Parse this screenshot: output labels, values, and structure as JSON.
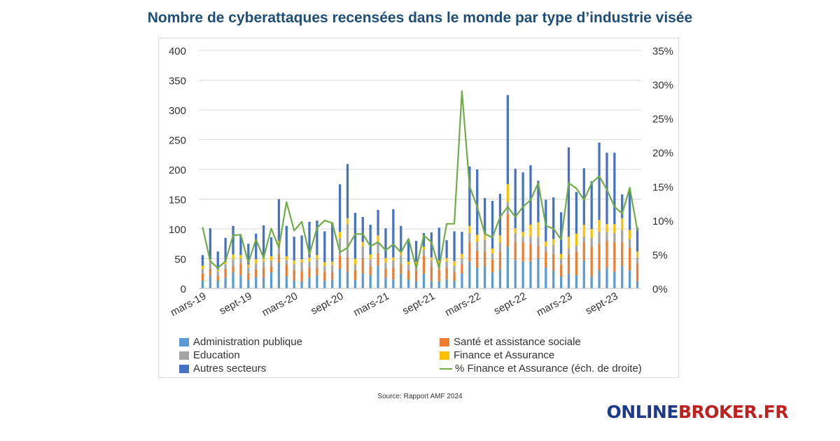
{
  "title": "Nombre de cyberattaques recensées dans le monde par type d’industrie visée",
  "source": "Source: Rapport AMF 2024",
  "brand": {
    "part1": "ONLINE",
    "part2": "BROKER.FR"
  },
  "colors": {
    "admin": "#5b9bd5",
    "sante": "#ed7d31",
    "education": "#a5a5a5",
    "finance": "#ffc000",
    "autres": "#4472c4",
    "pct": "#70ad47",
    "axis_text": "#333333",
    "title": "#1f4e79"
  },
  "chart_data": {
    "type": "bar",
    "stacked": true,
    "title": "Nombre de cyberattaques recensées dans le monde par type d’industrie visée",
    "ylim": [
      0,
      400
    ],
    "y_ticks": [
      "0",
      "50",
      "100",
      "150",
      "200",
      "250",
      "300",
      "350",
      "400"
    ],
    "y2lim": [
      0,
      35
    ],
    "y2_ticks": [
      "0%",
      "5%",
      "10%",
      "15%",
      "20%",
      "25%",
      "30%",
      "35%"
    ],
    "x_tick_labels": [
      "mars-19",
      "sept-19",
      "mars-20",
      "sept-20",
      "mars-21",
      "sept-21",
      "mars-22",
      "sept-22",
      "mars-23",
      "sept-23"
    ],
    "x_tick_every": 6,
    "series": [
      {
        "name": "Administration publique",
        "key": "admin",
        "values": [
          13,
          21,
          13,
          18,
          27,
          22,
          14,
          19,
          18,
          27,
          43,
          20,
          13,
          12,
          18,
          22,
          13,
          15,
          33,
          28,
          14,
          25,
          22,
          38,
          18,
          15,
          25,
          15,
          12,
          25,
          12,
          12,
          15,
          13,
          25,
          45,
          35,
          37,
          27,
          32,
          70,
          48,
          45,
          45,
          50,
          35,
          30,
          20,
          25,
          22,
          47,
          20,
          30,
          35,
          28,
          38,
          30,
          12
        ],
        "neutral": [
          0,
          0,
          0,
          0,
          0,
          0,
          0,
          0,
          0,
          0,
          0,
          0,
          0,
          0,
          0,
          0,
          0,
          0,
          0,
          0,
          0,
          0,
          0,
          0,
          0,
          0,
          0,
          0,
          0,
          0,
          0,
          0,
          0,
          0,
          0,
          0,
          0,
          0,
          0,
          0,
          0,
          0,
          0,
          0,
          0,
          0,
          0,
          0,
          0,
          0,
          0,
          0,
          0,
          0,
          0,
          0,
          0,
          0
        ]
      },
      {
        "name": "Santé et assistance sociale",
        "key": "sante",
        "values": [
          12,
          12,
          8,
          15,
          10,
          20,
          12,
          13,
          17,
          10,
          15,
          20,
          18,
          17,
          17,
          12,
          15,
          12,
          22,
          25,
          16,
          25,
          15,
          21,
          15,
          20,
          16,
          15,
          18,
          30,
          25,
          20,
          20,
          15,
          15,
          33,
          28,
          25,
          22,
          30,
          55,
          30,
          32,
          30,
          22,
          26,
          28,
          20,
          32,
          40,
          30,
          50,
          45,
          45,
          50,
          40,
          38,
          30
        ]
      },
      {
        "name": "Education",
        "key": "education",
        "values": [
          8,
          12,
          8,
          8,
          12,
          8,
          10,
          10,
          10,
          10,
          15,
          8,
          10,
          15,
          10,
          15,
          10,
          12,
          30,
          55,
          10,
          20,
          12,
          20,
          10,
          12,
          15,
          10,
          10,
          10,
          10,
          10,
          10,
          10,
          10,
          15,
          15,
          20,
          10,
          15,
          20,
          15,
          10,
          12,
          15,
          10,
          15,
          10,
          10,
          10,
          10,
          15,
          20,
          15,
          15,
          20,
          15,
          10
        ]
      },
      {
        "name": "Finance et Assurance",
        "key": "finance",
        "values": [
          5,
          4,
          3,
          4,
          8,
          6,
          4,
          7,
          6,
          7,
          7,
          6,
          6,
          5,
          7,
          7,
          6,
          6,
          10,
          10,
          10,
          8,
          8,
          10,
          8,
          5,
          6,
          5,
          5,
          5,
          5,
          5,
          6,
          8,
          8,
          12,
          12,
          10,
          8,
          12,
          30,
          8,
          8,
          20,
          24,
          8,
          10,
          8,
          20,
          20,
          20,
          15,
          20,
          13,
          15,
          20,
          15,
          10
        ]
      },
      {
        "name": "Autres secteurs",
        "key": "autres",
        "values": [
          18,
          52,
          30,
          40,
          48,
          33,
          35,
          43,
          55,
          32,
          70,
          51,
          40,
          40,
          60,
          58,
          52,
          66,
          80,
          91,
          77,
          42,
          50,
          43,
          50,
          81,
          43,
          35,
          35,
          23,
          42,
          55,
          30,
          50,
          37,
          100,
          110,
          60,
          80,
          70,
          150,
          100,
          100,
          100,
          70,
          70,
          70,
          70,
          150,
          70,
          95,
          80,
          130,
          120,
          120,
          40,
          70,
          40
        ]
      },
      {
        "name": "% Finance et Assurance (éch. de droite)",
        "key": "pct",
        "axis": "right",
        "values": [
          9,
          4,
          3,
          4,
          7.8,
          7.9,
          3.8,
          7.2,
          4.5,
          8.8,
          6,
          12.7,
          8.5,
          9.8,
          5,
          8.9,
          10,
          9.6,
          5.3,
          6,
          8,
          8,
          6.2,
          6.8,
          5.6,
          6.5,
          5.3,
          7.3,
          3,
          7.8,
          6.8,
          3,
          9.5,
          9.5,
          29,
          15,
          12,
          8,
          7.5,
          10.5,
          12,
          10.5,
          12,
          13,
          15.5,
          9.2,
          8.8,
          7.2,
          15.5,
          14.7,
          13,
          15.5,
          16.5,
          14.5,
          12,
          11,
          14.8,
          8.5
        ]
      }
    ],
    "legend": {
      "position": "bottom",
      "labels": [
        "Administration publique",
        "Santé et assistance sociale",
        "Education",
        "Finance et Assurance",
        "Autres secteurs",
        "% Finance et Assurance (éch. de droite)"
      ]
    }
  }
}
